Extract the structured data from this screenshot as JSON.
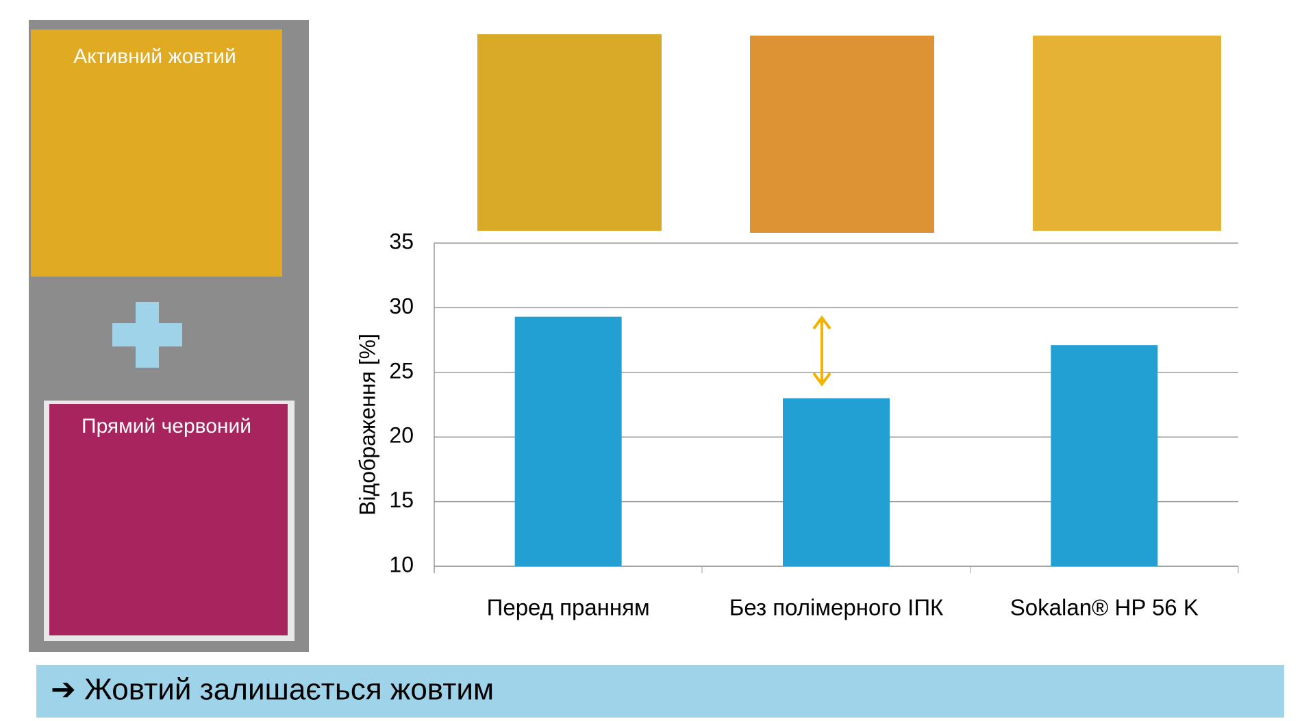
{
  "chart_data": {
    "type": "bar",
    "y_label": "Відображення [%]",
    "categories": [
      "Перед пранням",
      "Без полімерного ІПК",
      "Sokalan® HP 56 K"
    ],
    "values": [
      29.3,
      23.0,
      27.1
    ],
    "color": "#22a0d4",
    "ylim": [
      10,
      35
    ],
    "yticks": [
      10,
      15,
      20,
      25,
      30,
      35
    ],
    "grid": true
  },
  "panel": {
    "top_label": "Активний жовтий",
    "bottom_label": "Прямий червоний"
  },
  "footer": "➔ Жовтий залишається жовтим"
}
